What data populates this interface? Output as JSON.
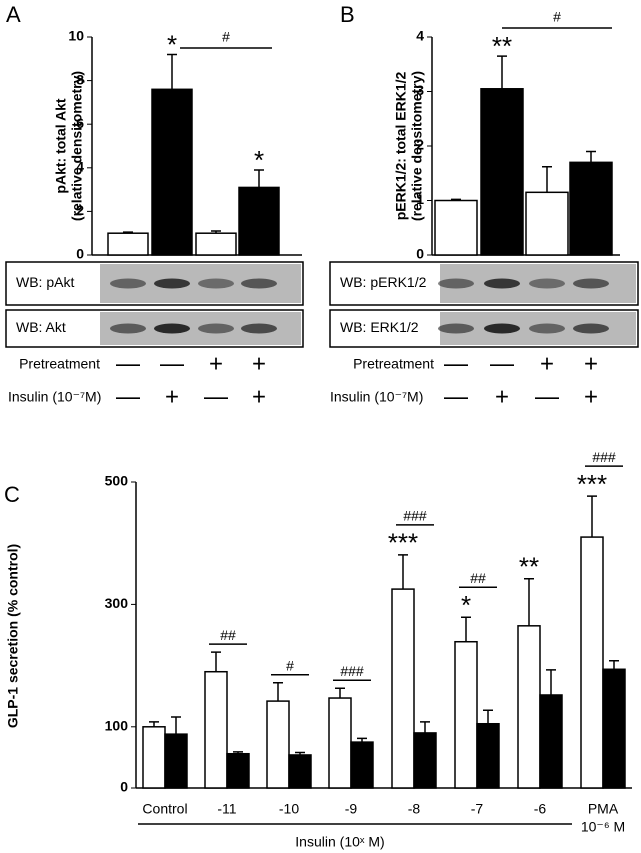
{
  "chart_data": [
    {
      "type": "bar",
      "panel": "A",
      "ylabel": [
        "pAkt: total Akt",
        "(relative densitometry)"
      ],
      "values": [
        1.0,
        7.6,
        1.0,
        3.1
      ],
      "errors": [
        0.05,
        1.6,
        0.1,
        0.8
      ],
      "colors": [
        "#ffffff",
        "#000000",
        "#ffffff",
        "#000000"
      ],
      "stars": [
        null,
        "*",
        null,
        "*"
      ],
      "comparison_label": "#",
      "ylim": [
        0,
        10
      ],
      "yticks": [
        0,
        2,
        4,
        6,
        8,
        10
      ],
      "blots": [
        "WB: pAkt",
        "WB: Akt"
      ],
      "conditions": [
        {
          "label": "Pretreatment",
          "signs": [
            "—",
            "—",
            "+",
            "+"
          ]
        },
        {
          "label": "Insulin (10⁻⁷M)",
          "signs": [
            "—",
            "+",
            "—",
            "+"
          ]
        }
      ]
    },
    {
      "type": "bar",
      "panel": "B",
      "ylabel": [
        "pERK1/2: total ERK1/2",
        "(relative densitometry)"
      ],
      "values": [
        1.0,
        3.05,
        1.15,
        1.7
      ],
      "errors": [
        0.02,
        0.6,
        0.47,
        0.2
      ],
      "colors": [
        "#ffffff",
        "#000000",
        "#ffffff",
        "#000000"
      ],
      "stars": [
        null,
        "**",
        null,
        null
      ],
      "comparison_label": "#",
      "ylim": [
        0,
        4
      ],
      "yticks": [
        0,
        1,
        2,
        3,
        4
      ],
      "blots": [
        "WB: pERK1/2",
        "WB: ERK1/2"
      ],
      "conditions": [
        {
          "label": "Pretreatment",
          "signs": [
            "—",
            "—",
            "+",
            "+"
          ]
        },
        {
          "label": "Insulin (10⁻⁷M)",
          "signs": [
            "—",
            "+",
            "—",
            "+"
          ]
        }
      ]
    },
    {
      "type": "grouped_bar",
      "panel": "C",
      "ylabel": "GLP-1 secretion (% control)",
      "xlabel": "Insulin (10ˣ M)",
      "categories": [
        "Control",
        "-11",
        "-10",
        "-9",
        "-8",
        "-7",
        "-6",
        "PMA"
      ],
      "category_sublabels": [
        null,
        null,
        null,
        null,
        null,
        null,
        null,
        "10⁻⁶ M"
      ],
      "series": [
        {
          "color": "#ffffff",
          "values": [
            100,
            190,
            142,
            147,
            325,
            239,
            265,
            410
          ],
          "errors": [
            8,
            32,
            30,
            16,
            56,
            40,
            77,
            67
          ]
        },
        {
          "color": "#000000",
          "values": [
            88,
            56,
            54,
            75,
            90,
            105,
            152,
            194
          ],
          "errors": [
            28,
            3,
            4,
            6,
            18,
            22,
            41,
            14
          ]
        }
      ],
      "stars": [
        null,
        null,
        null,
        null,
        "***",
        "*",
        "**",
        "***"
      ],
      "hashes": [
        null,
        "##",
        "#",
        "###",
        "###",
        "##",
        null,
        "###"
      ],
      "ylim": [
        0,
        500
      ],
      "yticks": [
        0,
        100,
        300,
        500
      ]
    }
  ]
}
